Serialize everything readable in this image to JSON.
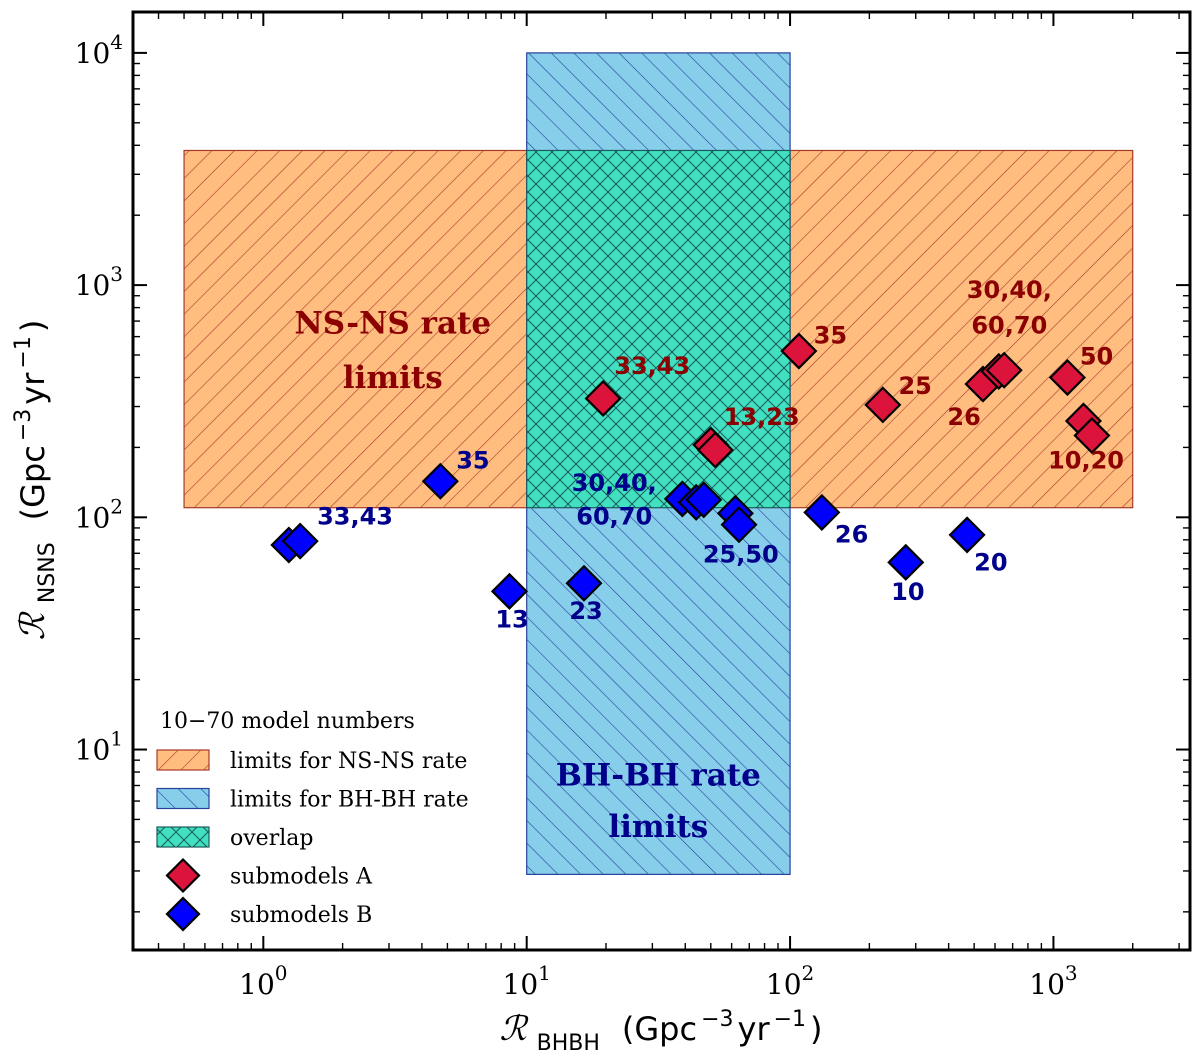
{
  "chart_data": {
    "type": "scatter",
    "xscale": "log",
    "yscale": "log",
    "xlim": [
      0.32,
      3300
    ],
    "ylim": [
      1.37,
      15000
    ],
    "xlabel": {
      "symbol": "ℛ",
      "subscript": "BHBH",
      "units": "(Gpc",
      "units_exp": "−3",
      "units_rest": " yr",
      "units_exp2": "−1",
      "units_close": ")"
    },
    "ylabel": {
      "symbol": "ℛ",
      "subscript": "NSNS",
      "units": "(Gpc",
      "units_exp": "−3",
      "units_rest": " yr",
      "units_exp2": "−1",
      "units_close": ")"
    },
    "xticks": [
      {
        "value": 1,
        "base": "10",
        "exp": "0"
      },
      {
        "value": 10,
        "base": "10",
        "exp": "1"
      },
      {
        "value": 100,
        "base": "10",
        "exp": "2"
      },
      {
        "value": 1000,
        "base": "10",
        "exp": "3"
      }
    ],
    "yticks": [
      {
        "value": 10,
        "base": "10",
        "exp": "1"
      },
      {
        "value": 100,
        "base": "10",
        "exp": "2"
      },
      {
        "value": 1000,
        "base": "10",
        "exp": "3"
      },
      {
        "value": 10000,
        "base": "10",
        "exp": "4"
      }
    ],
    "regions": {
      "nsns": {
        "x": [
          0.5,
          2000
        ],
        "y": [
          110,
          3800
        ],
        "fill": "#ffbd80",
        "hatch": "#a83a2a",
        "label_lines": [
          "NS-NS rate",
          "limits"
        ],
        "label_x": 3.1,
        "label_y1": 620,
        "label_y2": 360
      },
      "bhbh": {
        "x": [
          10,
          100
        ],
        "y": [
          2.9,
          10000
        ],
        "fill": "#87ceeb",
        "hatch": "#27419c",
        "label_lines": [
          "BH-BH rate",
          "limits"
        ],
        "label_x": 31.6,
        "label_y1": 7.0,
        "label_y2": 4.2
      },
      "overlap": {
        "x": [
          10,
          100
        ],
        "y": [
          110,
          3800
        ],
        "fill": "#40e0c0",
        "hatch": "#1c5a5c"
      }
    },
    "series": [
      {
        "name": "submodels A",
        "color": "#dc143c",
        "points": [
          {
            "x": 19.5,
            "y": 325
          },
          {
            "x": 50,
            "y": 205
          },
          {
            "x": 52,
            "y": 195
          },
          {
            "x": 108,
            "y": 520
          },
          {
            "x": 225,
            "y": 305
          },
          {
            "x": 540,
            "y": 375
          },
          {
            "x": 620,
            "y": 425
          },
          {
            "x": 650,
            "y": 430
          },
          {
            "x": 1130,
            "y": 400
          },
          {
            "x": 1300,
            "y": 260
          },
          {
            "x": 1400,
            "y": 225
          }
        ]
      },
      {
        "name": "submodels B",
        "color": "#0000ff",
        "points": [
          {
            "x": 1.25,
            "y": 76
          },
          {
            "x": 1.38,
            "y": 79
          },
          {
            "x": 4.7,
            "y": 143
          },
          {
            "x": 8.6,
            "y": 48
          },
          {
            "x": 16.5,
            "y": 52
          },
          {
            "x": 39,
            "y": 120
          },
          {
            "x": 44,
            "y": 116
          },
          {
            "x": 47,
            "y": 119
          },
          {
            "x": 62,
            "y": 104
          },
          {
            "x": 64,
            "y": 93
          },
          {
            "x": 132,
            "y": 105
          },
          {
            "x": 275,
            "y": 64
          },
          {
            "x": 470,
            "y": 84
          }
        ]
      }
    ],
    "annotations_a": [
      {
        "text": "33,43",
        "x": 21.5,
        "y": 415,
        "anchor": "start"
      },
      {
        "text": "13,23",
        "x": 56,
        "y": 250,
        "anchor": "start"
      },
      {
        "text": "35",
        "x": 123,
        "y": 560,
        "anchor": "start"
      },
      {
        "text": "25",
        "x": 258,
        "y": 340,
        "anchor": "start"
      },
      {
        "text": "26",
        "x": 530,
        "y": 250,
        "anchor": "end"
      },
      {
        "text": "30,40,",
        "x": 680,
        "y": 880,
        "anchor": "middle"
      },
      {
        "text": "60,70",
        "x": 680,
        "y": 620,
        "anchor": "middle"
      },
      {
        "text": "50",
        "x": 1260,
        "y": 455,
        "anchor": "start"
      },
      {
        "text": "10,20",
        "x": 1330,
        "y": 162,
        "anchor": "middle"
      }
    ],
    "annotations_b": [
      {
        "text": "33,43",
        "x": 1.6,
        "y": 93,
        "anchor": "start"
      },
      {
        "text": "35",
        "x": 5.4,
        "y": 162,
        "anchor": "start"
      },
      {
        "text": "13",
        "x": 8.8,
        "y": 33.5,
        "anchor": "middle"
      },
      {
        "text": "23",
        "x": 16.8,
        "y": 36.5,
        "anchor": "middle"
      },
      {
        "text": "30,40,",
        "x": 21.5,
        "y": 130,
        "anchor": "middle"
      },
      {
        "text": "60,70",
        "x": 21.5,
        "y": 93,
        "anchor": "middle"
      },
      {
        "text": "25,50",
        "x": 65,
        "y": 64,
        "anchor": "middle"
      },
      {
        "text": "26",
        "x": 148,
        "y": 78,
        "anchor": "start"
      },
      {
        "text": "10",
        "x": 280,
        "y": 44,
        "anchor": "middle"
      },
      {
        "text": "20",
        "x": 500,
        "y": 59,
        "anchor": "start"
      }
    ],
    "legend": {
      "placement": "lower-left",
      "header": "10−70   model numbers",
      "items": [
        {
          "label": "limits for NS-NS rate",
          "kind": "nsns"
        },
        {
          "label": "limits for BH-BH rate",
          "kind": "bhbh"
        },
        {
          "label": "overlap",
          "kind": "overlap"
        },
        {
          "label": "submodels A",
          "kind": "markerA"
        },
        {
          "label": "submodels B",
          "kind": "markerB"
        }
      ]
    }
  }
}
